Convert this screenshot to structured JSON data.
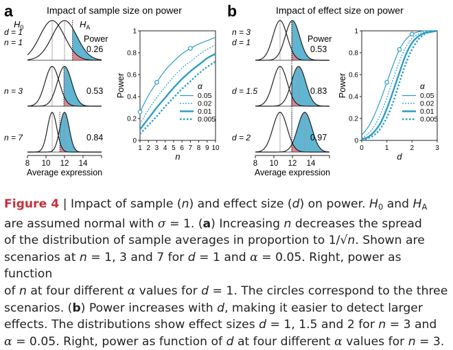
{
  "colors": {
    "blue_fill": "#5fb5d2",
    "red_fill": "#e0878e",
    "blue_line": "#2d9cc5",
    "text": "#231f20",
    "accent_red": "#c8303b"
  },
  "panel_a": {
    "letter": "a",
    "title": "Impact of sample size on power",
    "h0_label": "H",
    "h0_sub": "0",
    "ha_label": "H",
    "ha_sub": "A",
    "power_header": "Power",
    "rows": [
      {
        "label_line1": "d = 1",
        "label_line2": "n = 1",
        "power": "0.26"
      },
      {
        "label_line1": "",
        "label_line2": "n = 3",
        "power": "0.53"
      },
      {
        "label_line1": "",
        "label_line2": "n = 7",
        "power": "0.84"
      }
    ],
    "x_ticks": [
      "8",
      "10",
      "12",
      "14"
    ],
    "x_label": "Average expression",
    "plot": {
      "ylabel": "Power",
      "xlabel": "n",
      "x_ticks": [
        "1",
        "2",
        "3",
        "4",
        "5",
        "6",
        "7",
        "8",
        "9",
        "10"
      ],
      "y_ticks": [
        "0",
        "0.2",
        "0.4",
        "0.6",
        "0.8",
        "1"
      ],
      "legend_title": "α",
      "legend": [
        "0.05",
        "0.02",
        "0.01",
        "0.005"
      ]
    }
  },
  "panel_b": {
    "letter": "b",
    "title": "Impact of effect size on power",
    "power_header": "Power",
    "rows": [
      {
        "label_line1": "n = 3",
        "label_line2": "d = 1",
        "power": "0.53"
      },
      {
        "label_line1": "",
        "label_line2": "d = 1.5",
        "power": "0.83"
      },
      {
        "label_line1": "",
        "label_line2": "d = 2",
        "power": "0.97"
      }
    ],
    "x_ticks": [
      "8",
      "10",
      "12",
      "14"
    ],
    "x_label": "Average expression",
    "plot": {
      "ylabel": "Power",
      "xlabel": "d",
      "x_ticks": [
        "0",
        "1",
        "2",
        "3"
      ],
      "y_ticks": [
        "0",
        "0.2",
        "0.4",
        "0.6",
        "0.8",
        "1"
      ],
      "legend_title": "α",
      "legend": [
        "0.05",
        "0.02",
        "0.01",
        "0.005"
      ]
    }
  },
  "chart_data": [
    {
      "type": "line",
      "panel": "a",
      "xlabel": "n",
      "ylabel": "Power",
      "xlim": [
        1,
        10
      ],
      "ylim": [
        0,
        1
      ],
      "x": [
        1,
        2,
        3,
        4,
        5,
        6,
        7,
        8,
        9,
        10
      ],
      "legend_title": "α",
      "series": [
        {
          "name": "0.05",
          "values": [
            0.26,
            0.41,
            0.53,
            0.64,
            0.72,
            0.79,
            0.84,
            0.88,
            0.91,
            0.94
          ]
        },
        {
          "name": "0.02",
          "values": [
            0.15,
            0.28,
            0.39,
            0.49,
            0.58,
            0.66,
            0.72,
            0.78,
            0.83,
            0.87
          ]
        },
        {
          "name": "0.01",
          "values": [
            0.1,
            0.2,
            0.3,
            0.39,
            0.48,
            0.56,
            0.63,
            0.69,
            0.75,
            0.79
          ]
        },
        {
          "name": "0.005",
          "values": [
            0.06,
            0.14,
            0.22,
            0.31,
            0.39,
            0.47,
            0.54,
            0.61,
            0.67,
            0.72
          ]
        }
      ],
      "highlighted_points": [
        {
          "x": 1,
          "y": 0.26
        },
        {
          "x": 3,
          "y": 0.53
        },
        {
          "x": 7,
          "y": 0.84
        }
      ]
    },
    {
      "type": "line",
      "panel": "b",
      "xlabel": "d",
      "ylabel": "Power",
      "xlim": [
        0,
        3
      ],
      "ylim": [
        0,
        1
      ],
      "x": [
        0,
        0.25,
        0.5,
        0.75,
        1,
        1.25,
        1.5,
        1.75,
        2,
        2.25,
        2.5,
        2.75,
        3
      ],
      "legend_title": "α",
      "series": [
        {
          "name": "0.05",
          "values": [
            0.05,
            0.12,
            0.23,
            0.37,
            0.53,
            0.69,
            0.83,
            0.92,
            0.97,
            0.99,
            1.0,
            1.0,
            1.0
          ]
        },
        {
          "name": "0.02",
          "values": [
            0.02,
            0.06,
            0.13,
            0.24,
            0.39,
            0.56,
            0.72,
            0.85,
            0.93,
            0.97,
            0.99,
            1.0,
            1.0
          ]
        },
        {
          "name": "0.01",
          "values": [
            0.01,
            0.03,
            0.08,
            0.16,
            0.29,
            0.45,
            0.62,
            0.78,
            0.89,
            0.95,
            0.98,
            0.99,
            1.0
          ]
        },
        {
          "name": "0.005",
          "values": [
            0.005,
            0.02,
            0.05,
            0.11,
            0.21,
            0.35,
            0.53,
            0.7,
            0.83,
            0.92,
            0.97,
            0.99,
            1.0
          ]
        }
      ],
      "highlighted_points": [
        {
          "x": 1,
          "y": 0.53
        },
        {
          "x": 1.5,
          "y": 0.83
        },
        {
          "x": 2,
          "y": 0.97
        }
      ]
    }
  ],
  "caption": {
    "label": "Figure 4",
    "lines": [
      [
        {
          "t": "Figure 4",
          "s": "label"
        },
        {
          "t": " | Impact of sample ("
        },
        {
          "t": "n",
          "s": "i"
        },
        {
          "t": ") and effect size ("
        },
        {
          "t": "d",
          "s": "i"
        },
        {
          "t": ") on power. "
        },
        {
          "t": "H",
          "s": "i"
        },
        {
          "t": "0",
          "s": "sub"
        },
        {
          "t": " and "
        },
        {
          "t": "H",
          "s": "i"
        },
        {
          "t": "A",
          "s": "sub"
        }
      ],
      [
        {
          "t": "are assumed normal with "
        },
        {
          "t": "σ",
          "s": "sym"
        },
        {
          "t": " = 1. ("
        },
        {
          "t": "a",
          "s": "b"
        },
        {
          "t": ") Increasing "
        },
        {
          "t": "n",
          "s": "i"
        },
        {
          "t": " decreases the spread"
        }
      ],
      [
        {
          "t": "of the distribution of sample averages in proportion to 1/√"
        },
        {
          "t": "n",
          "s": "i"
        },
        {
          "t": ". Shown are"
        }
      ],
      [
        {
          "t": "scenarios at "
        },
        {
          "t": "n",
          "s": "i"
        },
        {
          "t": " = 1, 3 and 7 for "
        },
        {
          "t": "d",
          "s": "i"
        },
        {
          "t": " = 1 and "
        },
        {
          "t": "α",
          "s": "sym"
        },
        {
          "t": " = 0.05. Right, power as function"
        }
      ],
      [
        {
          "t": "of "
        },
        {
          "t": "n",
          "s": "i"
        },
        {
          "t": " at four different "
        },
        {
          "t": "α",
          "s": "sym"
        },
        {
          "t": " values for "
        },
        {
          "t": "d",
          "s": "i"
        },
        {
          "t": " = 1. The circles correspond to the three"
        }
      ],
      [
        {
          "t": "scenarios. ("
        },
        {
          "t": "b",
          "s": "b"
        },
        {
          "t": ") Power increases with "
        },
        {
          "t": "d",
          "s": "i"
        },
        {
          "t": ", making it easier to detect larger"
        }
      ],
      [
        {
          "t": "effects. The distributions show effect sizes "
        },
        {
          "t": "d",
          "s": "i"
        },
        {
          "t": " = 1, 1.5 and 2 for "
        },
        {
          "t": "n",
          "s": "i"
        },
        {
          "t": " = 3 and"
        }
      ],
      [
        {
          "t": "α",
          "s": "sym"
        },
        {
          "t": " = 0.05. Right, power as function of "
        },
        {
          "t": "d",
          "s": "i"
        },
        {
          "t": " at four different "
        },
        {
          "t": "α",
          "s": "sym"
        },
        {
          "t": " values for "
        },
        {
          "t": "n",
          "s": "i"
        },
        {
          "t": " = 3."
        }
      ]
    ]
  }
}
